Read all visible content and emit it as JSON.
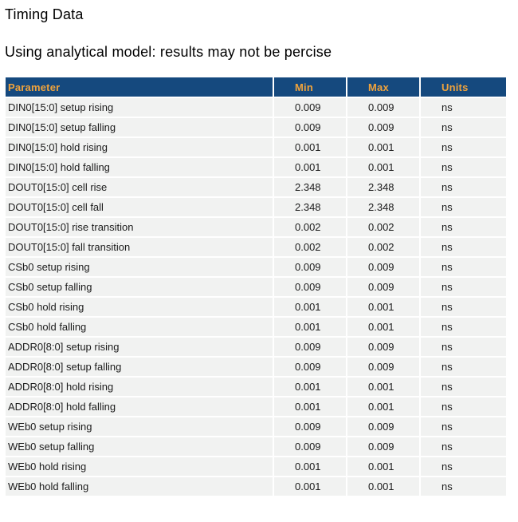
{
  "page": {
    "title": "Timing Data",
    "subtitle": "Using analytical model: results may not be percise"
  },
  "table": {
    "columns": [
      "Parameter",
      "Min",
      "Max",
      "Units"
    ],
    "rows": [
      {
        "parameter": "DIN0[15:0] setup rising",
        "min": "0.009",
        "max": "0.009",
        "units": "ns"
      },
      {
        "parameter": "DIN0[15:0] setup falling",
        "min": "0.009",
        "max": "0.009",
        "units": "ns"
      },
      {
        "parameter": "DIN0[15:0] hold rising",
        "min": "0.001",
        "max": "0.001",
        "units": "ns"
      },
      {
        "parameter": "DIN0[15:0] hold falling",
        "min": "0.001",
        "max": "0.001",
        "units": "ns"
      },
      {
        "parameter": "DOUT0[15:0] cell rise",
        "min": "2.348",
        "max": "2.348",
        "units": "ns"
      },
      {
        "parameter": "DOUT0[15:0] cell fall",
        "min": "2.348",
        "max": "2.348",
        "units": "ns"
      },
      {
        "parameter": "DOUT0[15:0] rise transition",
        "min": "0.002",
        "max": "0.002",
        "units": "ns"
      },
      {
        "parameter": "DOUT0[15:0] fall transition",
        "min": "0.002",
        "max": "0.002",
        "units": "ns"
      },
      {
        "parameter": "CSb0 setup rising",
        "min": "0.009",
        "max": "0.009",
        "units": "ns"
      },
      {
        "parameter": "CSb0 setup falling",
        "min": "0.009",
        "max": "0.009",
        "units": "ns"
      },
      {
        "parameter": "CSb0 hold rising",
        "min": "0.001",
        "max": "0.001",
        "units": "ns"
      },
      {
        "parameter": "CSb0 hold falling",
        "min": "0.001",
        "max": "0.001",
        "units": "ns"
      },
      {
        "parameter": "ADDR0[8:0] setup rising",
        "min": "0.009",
        "max": "0.009",
        "units": "ns"
      },
      {
        "parameter": "ADDR0[8:0] setup falling",
        "min": "0.009",
        "max": "0.009",
        "units": "ns"
      },
      {
        "parameter": "ADDR0[8:0] hold rising",
        "min": "0.001",
        "max": "0.001",
        "units": "ns"
      },
      {
        "parameter": "ADDR0[8:0] hold falling",
        "min": "0.001",
        "max": "0.001",
        "units": "ns"
      },
      {
        "parameter": "WEb0 setup rising",
        "min": "0.009",
        "max": "0.009",
        "units": "ns"
      },
      {
        "parameter": "WEb0 setup falling",
        "min": "0.009",
        "max": "0.009",
        "units": "ns"
      },
      {
        "parameter": "WEb0 hold rising",
        "min": "0.001",
        "max": "0.001",
        "units": "ns"
      },
      {
        "parameter": "WEb0 hold falling",
        "min": "0.001",
        "max": "0.001",
        "units": "ns"
      }
    ]
  },
  "colors": {
    "header_bg": "#15497E",
    "header_text": "#F0A33C",
    "row_bg": "#F1F2F1",
    "row_text": "#1B1B1B"
  }
}
